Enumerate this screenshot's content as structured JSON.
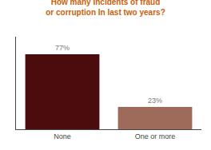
{
  "chart_data": {
    "type": "bar",
    "title": "How many Incidents of fraud\nor corruption In last two years?",
    "categories": [
      "None",
      "One or more"
    ],
    "values": [
      77,
      23
    ],
    "value_labels": [
      "77%",
      "23%"
    ],
    "colors": [
      "#4a0c0c",
      "#9e6b5a"
    ],
    "ylim": [
      0,
      95
    ],
    "grid": false,
    "data_labels": true,
    "tick_labels": "x"
  }
}
